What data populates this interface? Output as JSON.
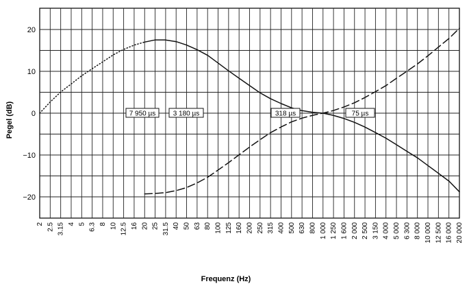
{
  "chart_data": {
    "type": "line",
    "title": "",
    "xlabel": "Frequenz (Hz)",
    "ylabel": "Pegel (dB)",
    "x_scale": "log",
    "ylim": [
      -24,
      25
    ],
    "grid": true,
    "yticks": [
      "20",
      "10",
      "0",
      "−10",
      "−20"
    ],
    "ytick_values": [
      20,
      10,
      0,
      -10,
      -20
    ],
    "xtick_labels": [
      "2",
      "2.5",
      "3.15",
      "4",
      "5",
      "6.3",
      "8",
      "10",
      "12.5",
      "16",
      "20",
      "25",
      "31.5",
      "40",
      "50",
      "63",
      "80",
      "100",
      "125",
      "160",
      "200",
      "250",
      "315",
      "400",
      "500",
      "630",
      "800",
      "1 000",
      "1 250",
      "1 600",
      "2 000",
      "2 500",
      "3 150",
      "4 000",
      "5 000",
      "6 300",
      "8 000",
      "10 000",
      "12 500",
      "16 000",
      "20 000"
    ],
    "annotations": [
      "7 950 µs",
      "3 180 µs",
      "318 µs",
      "75 µs"
    ],
    "series": [
      {
        "style": "dotted",
        "x": [
          2,
          2.5,
          3.15,
          4,
          5,
          6.3,
          8,
          10,
          12.5,
          16,
          20
        ],
        "y": [
          0,
          2.6,
          5.0,
          7.0,
          8.9,
          10.6,
          12.3,
          13.9,
          15.2,
          16.3,
          17.0
        ]
      },
      {
        "style": "solid",
        "x": [
          20,
          25,
          31.5,
          40,
          50,
          63,
          80,
          100,
          125,
          160,
          200,
          250,
          315,
          400,
          500,
          630,
          800,
          1000,
          1250,
          1600,
          2000,
          2500,
          3150,
          4000,
          5000,
          6300,
          8000,
          10000,
          12500,
          16000,
          20000
        ],
        "y": [
          17.0,
          17.5,
          17.5,
          17.1,
          16.3,
          15.2,
          13.8,
          12.0,
          10.2,
          8.3,
          6.6,
          4.9,
          3.5,
          2.3,
          1.3,
          0.6,
          0.2,
          0,
          -0.5,
          -1.3,
          -2.2,
          -3.3,
          -4.6,
          -6.0,
          -7.5,
          -9.1,
          -10.7,
          -12.5,
          -14.3,
          -16.3,
          -18.8
        ]
      },
      {
        "style": "dashed",
        "x": [
          20,
          25,
          31.5,
          40,
          50,
          63,
          80,
          100,
          125,
          160,
          200,
          250,
          315,
          400,
          500,
          630,
          800,
          1000,
          1250,
          1600,
          2000,
          2500,
          3150,
          4000,
          5000,
          6300,
          8000,
          10000,
          12500,
          16000,
          20000
        ],
        "y": [
          -19.3,
          -19.2,
          -19.0,
          -18.5,
          -17.8,
          -16.7,
          -15.3,
          -13.6,
          -11.9,
          -9.9,
          -8.1,
          -6.4,
          -4.7,
          -3.3,
          -2.1,
          -1.2,
          -0.5,
          0,
          0.6,
          1.5,
          2.5,
          3.7,
          5.1,
          6.6,
          8.3,
          10.0,
          11.8,
          13.7,
          15.7,
          17.9,
          20.3
        ]
      }
    ]
  }
}
